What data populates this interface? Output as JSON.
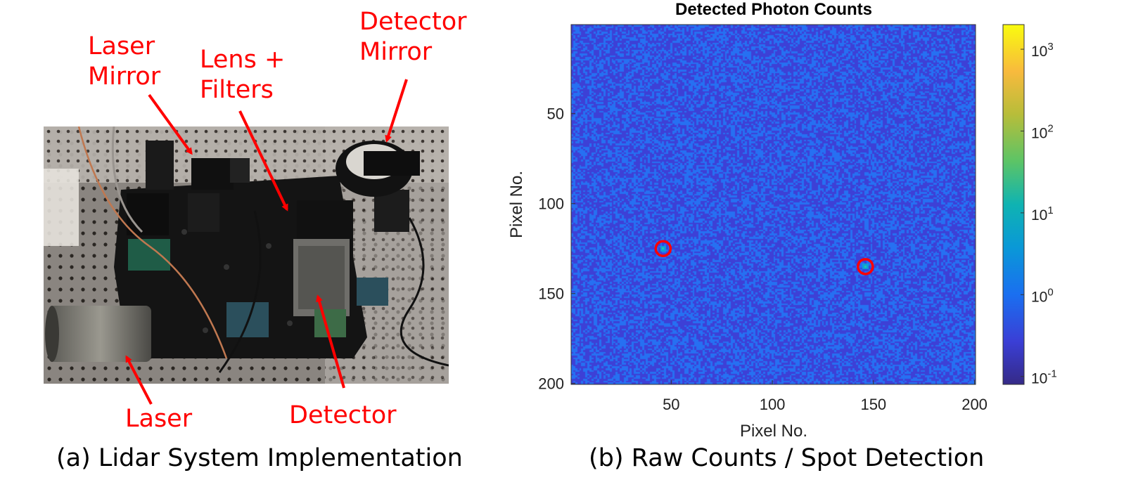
{
  "left_panel": {
    "labels": {
      "laser_mirror": "Laser\nMirror",
      "lens_filters": "Lens +\nFilters",
      "detector_mirror": "Detector\nMirror",
      "laser": "Laser",
      "detector": "Detector"
    },
    "caption": "(a) Lidar System Implementation"
  },
  "right_panel": {
    "caption": "(b) Raw Counts / Spot Detection"
  },
  "colors": {
    "annotation": "#ff0000",
    "background_noise": "#3d40d6",
    "spot": "#22c0b0"
  },
  "chart_data": {
    "type": "heatmap",
    "title": "Detected Photon Counts",
    "xlabel": "Pixel No.",
    "ylabel": "Pixel No.",
    "xlim": [
      1,
      200
    ],
    "ylim": [
      1,
      200
    ],
    "y_reversed": true,
    "xticks": [
      50,
      100,
      150,
      200
    ],
    "yticks": [
      50,
      100,
      150,
      200
    ],
    "color_scale": "log",
    "colorbar": {
      "ticks": [
        {
          "base": "10",
          "exp": "3",
          "value": 1000
        },
        {
          "base": "10",
          "exp": "2",
          "value": 100
        },
        {
          "base": "10",
          "exp": "1",
          "value": 10
        },
        {
          "base": "10",
          "exp": "0",
          "value": 1
        },
        {
          "base": "10",
          "exp": "-1",
          "value": 0.1
        }
      ],
      "range": [
        0.08,
        2000
      ]
    },
    "background_levels": [
      0.1,
      1
    ],
    "detected_spots": [
      {
        "x": 46,
        "y": 125,
        "peak": 10
      },
      {
        "x": 146,
        "y": 135,
        "peak": 10
      }
    ]
  }
}
